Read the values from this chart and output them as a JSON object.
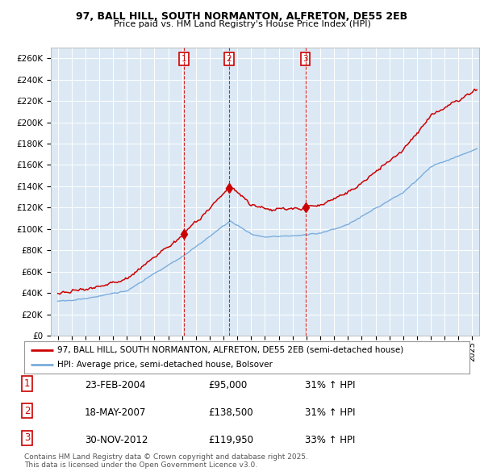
{
  "title_line1": "97, BALL HILL, SOUTH NORMANTON, ALFRETON, DE55 2EB",
  "title_line2": "Price paid vs. HM Land Registry's House Price Index (HPI)",
  "ylim": [
    0,
    270000
  ],
  "yticks": [
    0,
    20000,
    40000,
    60000,
    80000,
    100000,
    120000,
    140000,
    160000,
    180000,
    200000,
    220000,
    240000,
    260000
  ],
  "ytick_labels": [
    "£0",
    "£20K",
    "£40K",
    "£60K",
    "£80K",
    "£100K",
    "£120K",
    "£140K",
    "£160K",
    "£180K",
    "£200K",
    "£220K",
    "£240K",
    "£260K"
  ],
  "red_line_label": "97, BALL HILL, SOUTH NORMANTON, ALFRETON, DE55 2EB (semi-detached house)",
  "blue_line_label": "HPI: Average price, semi-detached house, Bolsover",
  "sale_points": [
    {
      "label": "1",
      "date_str": "23-FEB-2004",
      "price": 95000,
      "hpi_pct": "31% ↑ HPI",
      "x": 2004.13
    },
    {
      "label": "2",
      "date_str": "18-MAY-2007",
      "price": 138500,
      "hpi_pct": "31% ↑ HPI",
      "x": 2007.38
    },
    {
      "label": "3",
      "date_str": "30-NOV-2012",
      "price": 119950,
      "hpi_pct": "33% ↑ HPI",
      "x": 2012.92
    }
  ],
  "red_color": "#cc0000",
  "blue_color": "#7aaddc",
  "chart_bg_color": "#dce9f5",
  "background_color": "#ffffff",
  "grid_color": "#ffffff",
  "footer_text": "Contains HM Land Registry data © Crown copyright and database right 2025.\nThis data is licensed under the Open Government Licence v3.0.",
  "xlim": [
    1994.5,
    2025.5
  ]
}
